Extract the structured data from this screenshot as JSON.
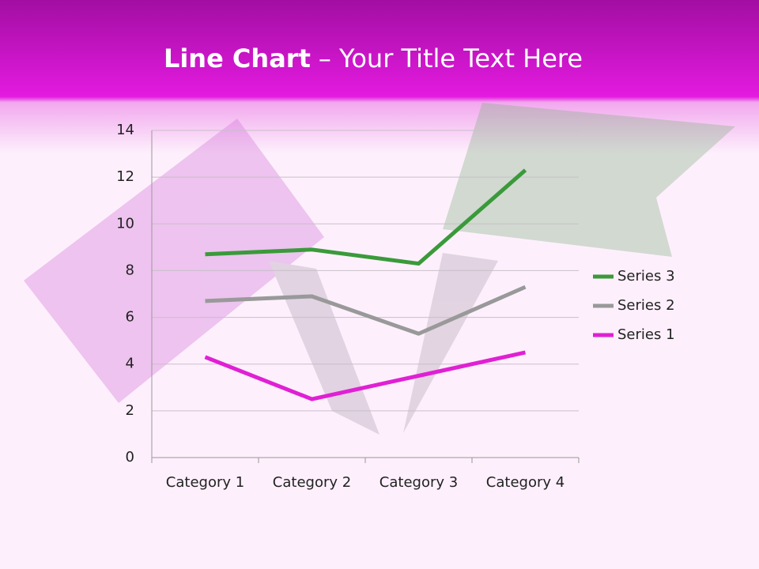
{
  "chart_data": {
    "type": "line",
    "stacked": true,
    "title": [
      "Line Chart",
      "– Your Title Text Here"
    ],
    "categories": [
      "Category 1",
      "Category 2",
      "Category 3",
      "Category 4"
    ],
    "series": [
      {
        "name": "Series 1",
        "color": "#e020d4",
        "values": [
          4.3,
          2.5,
          3.5,
          4.5
        ]
      },
      {
        "name": "Series 2",
        "color": "#999999",
        "values": [
          2.4,
          4.4,
          1.8,
          2.8
        ]
      },
      {
        "name": "Series 3",
        "color": "#3a9a3a",
        "values": [
          2,
          2,
          3,
          5
        ]
      }
    ],
    "ylim": [
      0,
      14
    ],
    "yticks": [
      0,
      2,
      4,
      6,
      8,
      10,
      12,
      14
    ],
    "grid": true,
    "legend": "right"
  }
}
